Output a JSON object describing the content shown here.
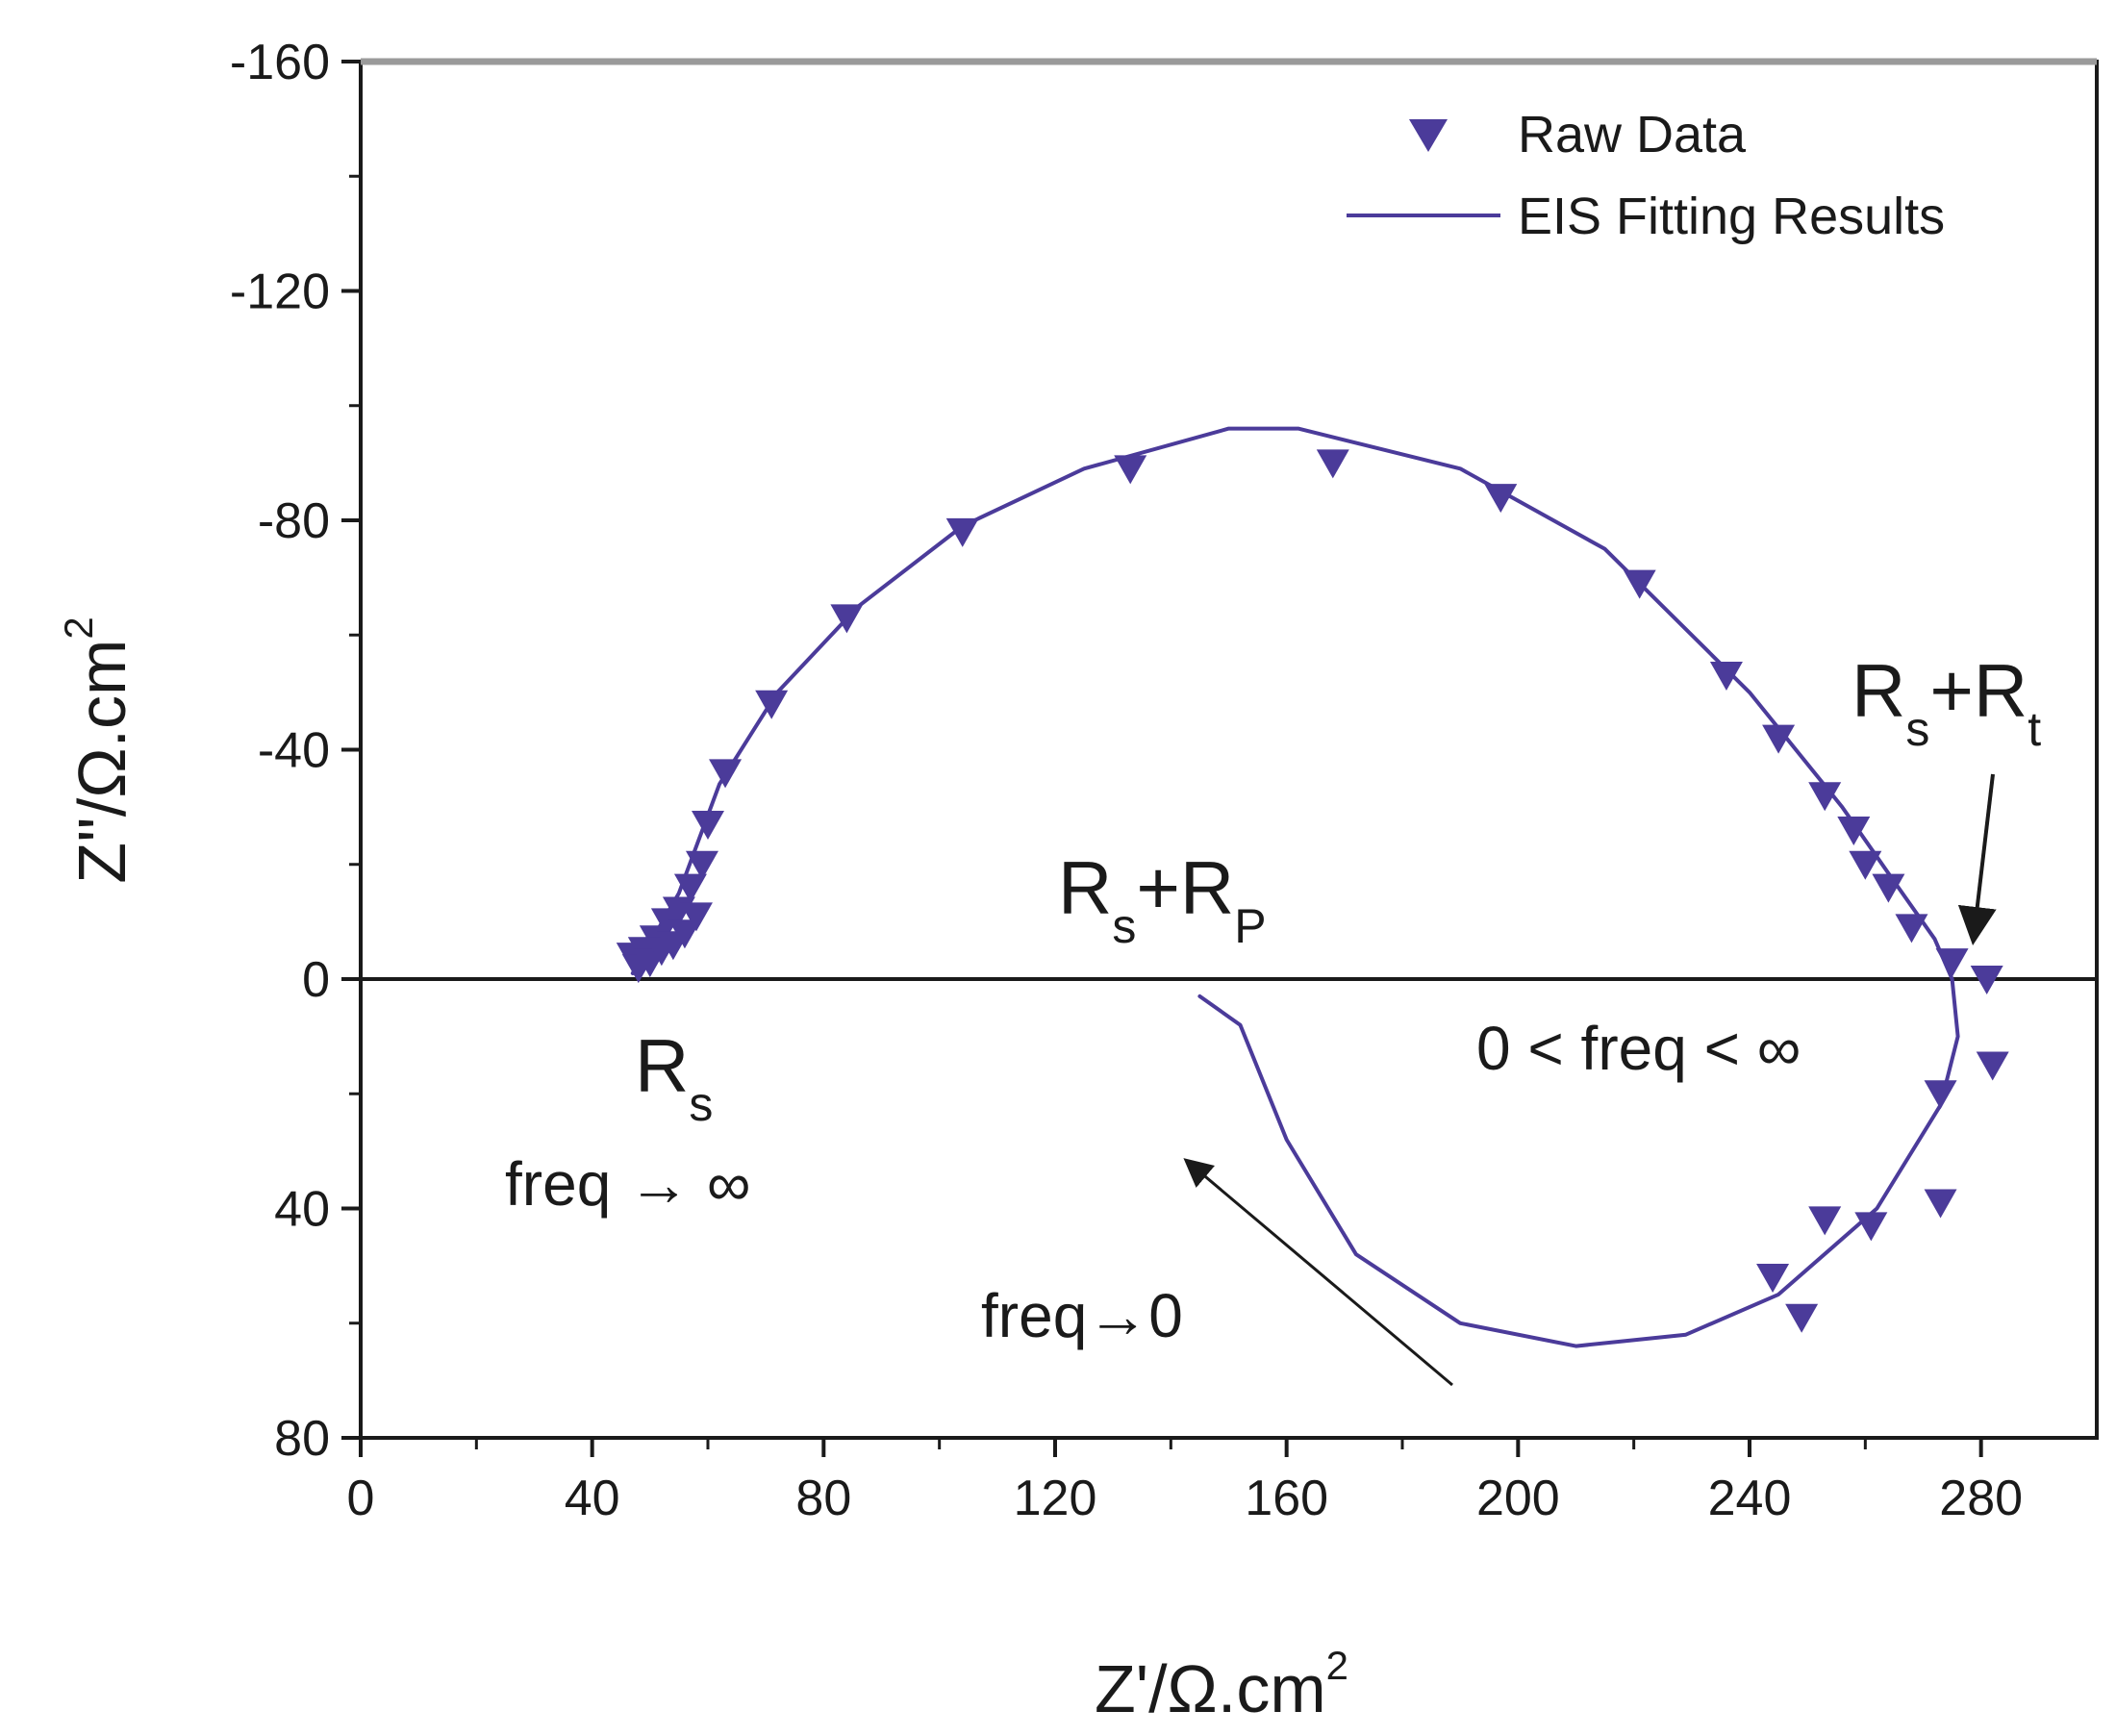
{
  "chart_data": {
    "type": "scatter",
    "title": "",
    "xlabel": {
      "base": "Z'/Ω.cm",
      "sup": "2"
    },
    "ylabel": {
      "base": "Z''/Ω.cm",
      "sup": "2"
    },
    "xlim": [
      0,
      300
    ],
    "ylim": [
      80,
      -160
    ],
    "y_inverted": true,
    "x_ticks": [
      0,
      40,
      80,
      120,
      160,
      200,
      240,
      280
    ],
    "x_tick_labels": [
      "0",
      "40",
      "80",
      "120",
      "160",
      "200",
      "240",
      "280"
    ],
    "y_ticks": [
      -160,
      -120,
      -80,
      -40,
      0,
      40,
      80
    ],
    "y_tick_labels": [
      "-160",
      "-120",
      "-80",
      "-40",
      "0",
      "40",
      "80"
    ],
    "grid": false,
    "legend_position": "top-right",
    "colors": {
      "series": "#4b3b9a",
      "axis": "#1a1a1a"
    },
    "series": [
      {
        "name": "Raw Data",
        "marker": "triangle-down",
        "points": [
          [
            47,
            -4
          ],
          [
            48,
            -2
          ],
          [
            49,
            -5
          ],
          [
            50,
            -3
          ],
          [
            51,
            -7
          ],
          [
            52,
            -5
          ],
          [
            53,
            -10
          ],
          [
            54,
            -6
          ],
          [
            55,
            -12
          ],
          [
            56,
            -8
          ],
          [
            57,
            -16
          ],
          [
            58,
            -11
          ],
          [
            59,
            -20
          ],
          [
            60,
            -27
          ],
          [
            63,
            -36
          ],
          [
            71,
            -48
          ],
          [
            84,
            -63
          ],
          [
            104,
            -78
          ],
          [
            133,
            -89
          ],
          [
            168,
            -90
          ],
          [
            197,
            -84
          ],
          [
            221,
            -69
          ],
          [
            236,
            -53
          ],
          [
            245,
            -42
          ],
          [
            253,
            -32
          ],
          [
            258,
            -26
          ],
          [
            260,
            -20
          ],
          [
            264,
            -16
          ],
          [
            268,
            -9
          ],
          [
            275,
            -3
          ],
          [
            281,
            0
          ],
          [
            282,
            15
          ],
          [
            273,
            20
          ],
          [
            273,
            39
          ],
          [
            261,
            43
          ],
          [
            253,
            42
          ],
          [
            244,
            52
          ],
          [
            249,
            59
          ]
        ]
      },
      {
        "name": "EIS Fitting Results",
        "style": "line",
        "points": [
          [
            47,
            -1
          ],
          [
            55,
            -15
          ],
          [
            62,
            -34
          ],
          [
            72,
            -50
          ],
          [
            86,
            -65
          ],
          [
            104,
            -79
          ],
          [
            125,
            -89
          ],
          [
            150,
            -96
          ],
          [
            162,
            -96
          ],
          [
            190,
            -89
          ],
          [
            215,
            -75
          ],
          [
            240,
            -50
          ],
          [
            256,
            -30
          ],
          [
            265,
            -17
          ],
          [
            272,
            -7
          ],
          [
            275,
            0
          ],
          [
            276,
            10
          ],
          [
            273,
            22
          ],
          [
            262,
            40
          ],
          [
            245,
            55
          ],
          [
            229,
            62
          ],
          [
            210,
            64
          ],
          [
            190,
            60
          ],
          [
            172,
            48
          ],
          [
            160,
            28
          ],
          [
            152,
            8
          ],
          [
            145,
            3
          ]
        ]
      }
    ],
    "annotations": [
      {
        "main": "R",
        "sub": "s"
      },
      {
        "text": "freq → ∞"
      },
      {
        "main": "R",
        "sub": "s",
        "tail": "+R",
        "tail_sub": "P"
      },
      {
        "main": "R",
        "sub": "s",
        "tail": "+R",
        "tail_sub": "t"
      },
      {
        "text": "0 < freq < ∞"
      },
      {
        "text": "freq→0"
      }
    ]
  }
}
